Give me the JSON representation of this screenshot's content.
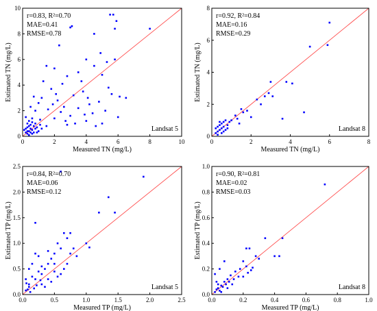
{
  "chart_data": [
    {
      "type": "scatter",
      "panel": "a",
      "xlabel": "Measured TN  (mg/L)",
      "ylabel": "Estimated TN  (mg/L)",
      "xlim": [
        0,
        10
      ],
      "ylim": [
        0,
        10
      ],
      "xticks": [
        "0",
        "2",
        "4",
        "6",
        "8",
        "10"
      ],
      "yticks": [
        "0",
        "2",
        "4",
        "6",
        "8",
        "10"
      ],
      "stats": [
        "r=0.83,  R²=0.70",
        "MAE=0.41",
        "RMSE=0.78"
      ],
      "satellite": "Landsat 5",
      "fit_line": [
        [
          0,
          0
        ],
        [
          10,
          10
        ]
      ],
      "point_color": "#0000ff",
      "line_color": "#ff4d4d",
      "points": [
        [
          5.5,
          9.5
        ],
        [
          5.7,
          9.5
        ],
        [
          5.9,
          9.0
        ],
        [
          5.8,
          8.4
        ],
        [
          8.0,
          8.4
        ],
        [
          3.0,
          8.5
        ],
        [
          3.1,
          8.6
        ],
        [
          4.5,
          8.0
        ],
        [
          2.3,
          7.1
        ],
        [
          4.9,
          6.5
        ],
        [
          5.3,
          5.8
        ],
        [
          5.8,
          6.0
        ],
        [
          4.0,
          6.0
        ],
        [
          4.5,
          5.5
        ],
        [
          1.5,
          5.5
        ],
        [
          2.0,
          5.3
        ],
        [
          2.8,
          4.7
        ],
        [
          3.5,
          5.0
        ],
        [
          5.0,
          4.8
        ],
        [
          6.5,
          3.0
        ],
        [
          5.6,
          3.3
        ],
        [
          6.1,
          3.1
        ],
        [
          2.5,
          4.1
        ],
        [
          3.2,
          3.2
        ],
        [
          3.8,
          3.5
        ],
        [
          1.8,
          3.7
        ],
        [
          1.2,
          3.0
        ],
        [
          1.0,
          2.6
        ],
        [
          2.2,
          2.8
        ],
        [
          4.2,
          2.5
        ],
        [
          4.8,
          2.7
        ],
        [
          3.5,
          2.2
        ],
        [
          2.6,
          2.3
        ],
        [
          5.2,
          2.0
        ],
        [
          1.6,
          2.1
        ],
        [
          0.8,
          2.0
        ],
        [
          4.4,
          1.8
        ],
        [
          3.0,
          1.6
        ],
        [
          2.0,
          1.4
        ],
        [
          6.0,
          1.5
        ],
        [
          3.3,
          1.0
        ],
        [
          4.0,
          1.2
        ],
        [
          5.0,
          1.0
        ],
        [
          2.8,
          0.9
        ],
        [
          1.5,
          0.8
        ],
        [
          0.6,
          1.1
        ],
        [
          1.1,
          1.3
        ],
        [
          2.4,
          1.9
        ],
        [
          0.9,
          0.7
        ],
        [
          4.6,
          0.8
        ],
        [
          3.7,
          4.3
        ],
        [
          2.1,
          3.3
        ],
        [
          1.3,
          4.3
        ],
        [
          0.7,
          3.1
        ],
        [
          5.4,
          3.8
        ],
        [
          3.9,
          1.7
        ],
        [
          2.7,
          1.2
        ],
        [
          4.1,
          3.0
        ],
        [
          1.9,
          2.5
        ],
        [
          0.5,
          2.3
        ],
        [
          0.2,
          1.5
        ],
        [
          0.3,
          1.0
        ],
        [
          0.4,
          0.8
        ],
        [
          0.5,
          0.6
        ],
        [
          0.6,
          0.5
        ],
        [
          0.2,
          0.3
        ],
        [
          0.3,
          0.2
        ],
        [
          0.4,
          0.4
        ],
        [
          0.1,
          0.5
        ],
        [
          0.7,
          0.3
        ],
        [
          0.8,
          0.6
        ],
        [
          0.3,
          0.7
        ],
        [
          0.5,
          0.9
        ],
        [
          0.2,
          0.6
        ],
        [
          0.6,
          0.2
        ],
        [
          1.0,
          0.4
        ],
        [
          0.4,
          0.1
        ],
        [
          0.9,
          0.3
        ],
        [
          1.2,
          0.6
        ],
        [
          0.3,
          0.4
        ],
        [
          0.5,
          0.3
        ],
        [
          0.7,
          0.8
        ],
        [
          0.4,
          1.2
        ],
        [
          1.1,
          0.9
        ],
        [
          0.6,
          1.4
        ],
        [
          0.8,
          1.0
        ]
      ]
    },
    {
      "type": "scatter",
      "panel": "b",
      "xlabel": "Measured TN  (mg/L)",
      "ylabel": "Estimated TN  (mg/L)",
      "xlim": [
        0,
        8
      ],
      "ylim": [
        0,
        8
      ],
      "xticks": [
        "0",
        "2",
        "4",
        "6",
        "8"
      ],
      "yticks": [
        "0",
        "2",
        "4",
        "6",
        "8"
      ],
      "stats": [
        "r=0.92,  R²=0.84",
        "MAE=0.16",
        "RMSE=0.29"
      ],
      "satellite": "Landsat 8",
      "fit_line": [
        [
          0,
          0
        ],
        [
          8,
          8
        ]
      ],
      "point_color": "#0000ff",
      "line_color": "#ff4d4d",
      "points": [
        [
          6.0,
          7.1
        ],
        [
          5.0,
          5.6
        ],
        [
          5.9,
          5.7
        ],
        [
          3.8,
          3.4
        ],
        [
          4.1,
          3.3
        ],
        [
          3.0,
          3.4
        ],
        [
          2.9,
          2.7
        ],
        [
          3.1,
          2.5
        ],
        [
          2.7,
          2.5
        ],
        [
          2.3,
          2.3
        ],
        [
          2.5,
          2.0
        ],
        [
          1.8,
          1.6
        ],
        [
          1.5,
          1.7
        ],
        [
          1.2,
          1.3
        ],
        [
          1.0,
          1.0
        ],
        [
          1.3,
          1.1
        ],
        [
          1.6,
          1.5
        ],
        [
          2.0,
          1.2
        ],
        [
          1.4,
          0.8
        ],
        [
          3.6,
          1.1
        ],
        [
          4.7,
          1.5
        ],
        [
          0.9,
          0.9
        ],
        [
          0.8,
          0.7
        ],
        [
          0.7,
          1.0
        ],
        [
          0.6,
          0.6
        ],
        [
          0.5,
          0.5
        ],
        [
          0.4,
          0.4
        ],
        [
          0.3,
          0.3
        ],
        [
          0.2,
          0.2
        ],
        [
          0.4,
          0.7
        ],
        [
          0.5,
          0.8
        ],
        [
          0.3,
          0.6
        ],
        [
          0.6,
          0.3
        ],
        [
          0.7,
          0.4
        ],
        [
          0.2,
          0.5
        ],
        [
          0.5,
          0.2
        ],
        [
          0.4,
          0.9
        ],
        [
          0.3,
          0.1
        ],
        [
          0.8,
          0.5
        ],
        [
          0.6,
          0.9
        ]
      ]
    },
    {
      "type": "scatter",
      "panel": "c",
      "xlabel": "Measured TP  (mg/L)",
      "ylabel": "Estimated TP  (mg/L)",
      "xlim": [
        0,
        2.5
      ],
      "ylim": [
        0,
        2.5
      ],
      "xticks": [
        "0.0",
        "0.5",
        "1.0",
        "1.5",
        "2.0",
        "2.5"
      ],
      "yticks": [
        "0.0",
        "0.5",
        "1.0",
        "1.5",
        "2.0",
        "2.5"
      ],
      "stats": [
        "r=0.84,  R²=0.70",
        "MAE=0.06",
        "RMSE=0.12"
      ],
      "satellite": "Landsat 5",
      "fit_line": [
        [
          0,
          0
        ],
        [
          2.5,
          2.5
        ]
      ],
      "point_color": "#0000ff",
      "line_color": "#ff4d4d",
      "points": [
        [
          1.9,
          2.3
        ],
        [
          0.6,
          2.4
        ],
        [
          1.35,
          1.9
        ],
        [
          1.2,
          1.6
        ],
        [
          1.45,
          1.6
        ],
        [
          0.2,
          1.4
        ],
        [
          0.65,
          1.2
        ],
        [
          0.7,
          1.1
        ],
        [
          0.75,
          1.2
        ],
        [
          1.0,
          1.0
        ],
        [
          1.05,
          0.92
        ],
        [
          0.55,
          1.0
        ],
        [
          0.6,
          0.9
        ],
        [
          0.5,
          0.8
        ],
        [
          0.45,
          0.7
        ],
        [
          0.8,
          0.9
        ],
        [
          0.7,
          0.6
        ],
        [
          0.4,
          0.6
        ],
        [
          0.35,
          0.5
        ],
        [
          0.3,
          0.4
        ],
        [
          0.25,
          0.45
        ],
        [
          0.2,
          0.3
        ],
        [
          0.15,
          0.35
        ],
        [
          0.1,
          0.2
        ],
        [
          0.2,
          0.8
        ],
        [
          0.25,
          0.75
        ],
        [
          0.15,
          0.6
        ],
        [
          0.1,
          0.5
        ],
        [
          0.05,
          0.3
        ],
        [
          0.6,
          0.4
        ],
        [
          0.55,
          0.35
        ],
        [
          0.5,
          0.45
        ],
        [
          0.4,
          0.3
        ],
        [
          0.3,
          0.2
        ],
        [
          0.45,
          0.25
        ],
        [
          0.35,
          0.15
        ],
        [
          0.08,
          0.1
        ],
        [
          0.12,
          0.05
        ],
        [
          0.05,
          0.08
        ],
        [
          0.18,
          0.12
        ],
        [
          0.22,
          0.18
        ],
        [
          0.1,
          0.15
        ],
        [
          0.3,
          0.55
        ],
        [
          0.4,
          0.85
        ],
        [
          0.85,
          0.75
        ],
        [
          0.65,
          0.5
        ],
        [
          0.75,
          0.8
        ],
        [
          0.5,
          0.6
        ],
        [
          0.28,
          0.28
        ],
        [
          0.06,
          0.22
        ]
      ]
    },
    {
      "type": "scatter",
      "panel": "d",
      "xlabel": "Measured TP  (mg/L)",
      "ylabel": "Estimated TP  (mg/L)",
      "xlim": [
        0,
        1.0
      ],
      "ylim": [
        0,
        1.0
      ],
      "xticks": [
        "0.0",
        "0.2",
        "0.4",
        "0.6",
        "0.8",
        "1.0"
      ],
      "yticks": [
        "0.0",
        "0.2",
        "0.4",
        "0.6",
        "0.8",
        "1.0"
      ],
      "stats": [
        "r=0.90,  R²=0.81",
        "MAE=0.02",
        "RMSE=0.03"
      ],
      "satellite": "Landsat 8",
      "fit_line": [
        [
          0,
          0
        ],
        [
          1.0,
          1.0
        ]
      ],
      "point_color": "#0000ff",
      "line_color": "#ff4d4d",
      "points": [
        [
          0.72,
          0.86
        ],
        [
          0.34,
          0.44
        ],
        [
          0.45,
          0.44
        ],
        [
          0.22,
          0.36
        ],
        [
          0.24,
          0.36
        ],
        [
          0.4,
          0.3
        ],
        [
          0.43,
          0.3
        ],
        [
          0.28,
          0.3
        ],
        [
          0.3,
          0.28
        ],
        [
          0.2,
          0.26
        ],
        [
          0.22,
          0.22
        ],
        [
          0.18,
          0.2
        ],
        [
          0.25,
          0.19
        ],
        [
          0.15,
          0.18
        ],
        [
          0.12,
          0.15
        ],
        [
          0.14,
          0.12
        ],
        [
          0.1,
          0.12
        ],
        [
          0.08,
          0.1
        ],
        [
          0.06,
          0.07
        ],
        [
          0.04,
          0.05
        ],
        [
          0.03,
          0.04
        ],
        [
          0.02,
          0.02
        ],
        [
          0.05,
          0.03
        ],
        [
          0.07,
          0.06
        ],
        [
          0.09,
          0.08
        ],
        [
          0.11,
          0.1
        ],
        [
          0.02,
          0.16
        ],
        [
          0.05,
          0.2
        ],
        [
          0.08,
          0.26
        ],
        [
          0.03,
          0.1
        ],
        [
          0.04,
          0.08
        ],
        [
          0.06,
          0.02
        ],
        [
          0.1,
          0.05
        ],
        [
          0.13,
          0.08
        ],
        [
          0.2,
          0.14
        ],
        [
          0.26,
          0.21
        ],
        [
          0.17,
          0.14
        ],
        [
          0.23,
          0.17
        ]
      ]
    }
  ]
}
